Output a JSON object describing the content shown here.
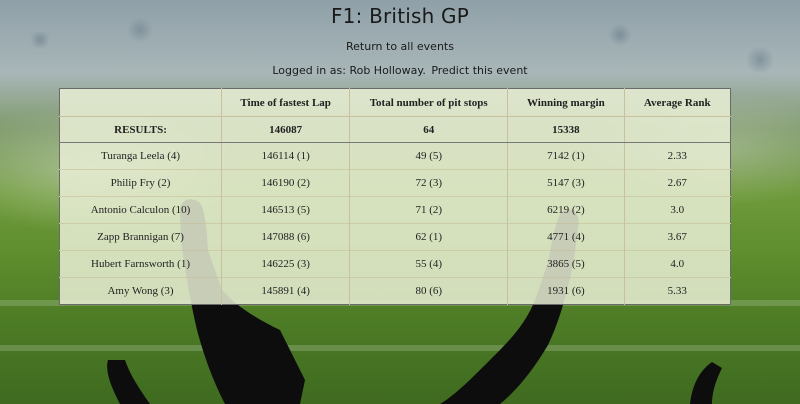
{
  "page": {
    "title": "F1: British GP",
    "return_link": "Return to all events",
    "logged_in_text": "Logged in as: Rob Holloway.",
    "predict_link": "Predict this event"
  },
  "table": {
    "headers": [
      "",
      "Time of fastest Lap",
      "Total number of pit stops",
      "Winning margin",
      "Average Rank"
    ],
    "results_row": [
      "RESULTS:",
      "146087",
      "64",
      "15338",
      ""
    ],
    "rows": [
      {
        "name": "Turanga Leela (4)",
        "fastest_lap": "146114 (1)",
        "pit_stops": "49 (5)",
        "margin": "7142 (1)",
        "avg_rank": "2.33"
      },
      {
        "name": "Philip Fry (2)",
        "fastest_lap": "146190 (2)",
        "pit_stops": "72 (3)",
        "margin": "5147 (3)",
        "avg_rank": "2.67"
      },
      {
        "name": "Antonio Calculon (10)",
        "fastest_lap": "146513 (5)",
        "pit_stops": "71 (2)",
        "margin": "6219 (2)",
        "avg_rank": "3.0"
      },
      {
        "name": "Zapp Brannigan (7)",
        "fastest_lap": "147088 (6)",
        "pit_stops": "62 (1)",
        "margin": "4771 (4)",
        "avg_rank": "3.67"
      },
      {
        "name": "Hubert Farnsworth (1)",
        "fastest_lap": "146225 (3)",
        "pit_stops": "55 (4)",
        "margin": "3865 (5)",
        "avg_rank": "4.0"
      },
      {
        "name": "Amy Wong (3)",
        "fastest_lap": "145891 (4)",
        "pit_stops": "80 (6)",
        "margin": "1931 (6)",
        "avg_rank": "5.33"
      }
    ]
  }
}
